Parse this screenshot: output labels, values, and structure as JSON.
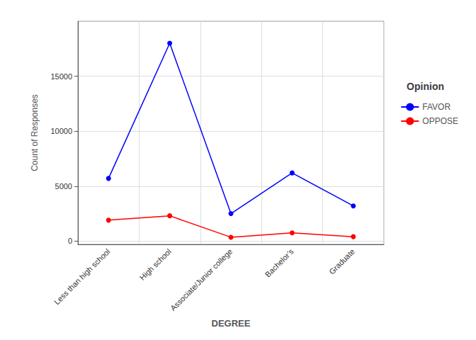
{
  "chart_data": {
    "type": "line",
    "categories": [
      "Less than high school",
      "High school",
      "Associate/Junior college",
      "Bachelor’s",
      "Graduate"
    ],
    "series": [
      {
        "name": "FAVOR",
        "color": "#0000FF",
        "values": [
          5700,
          18000,
          2500,
          6200,
          3200
        ]
      },
      {
        "name": "OPPOSE",
        "color": "#FF0000",
        "values": [
          1900,
          2300,
          350,
          750,
          400
        ]
      }
    ],
    "xlabel": "DEGREE",
    "ylabel": "Count of Responses",
    "ylim": [
      -300,
      20000
    ],
    "yticks": [
      0,
      5000,
      10000,
      15000
    ],
    "grid": true,
    "legend": "right",
    "legend_title": "Opinion",
    "marker": "circle"
  }
}
